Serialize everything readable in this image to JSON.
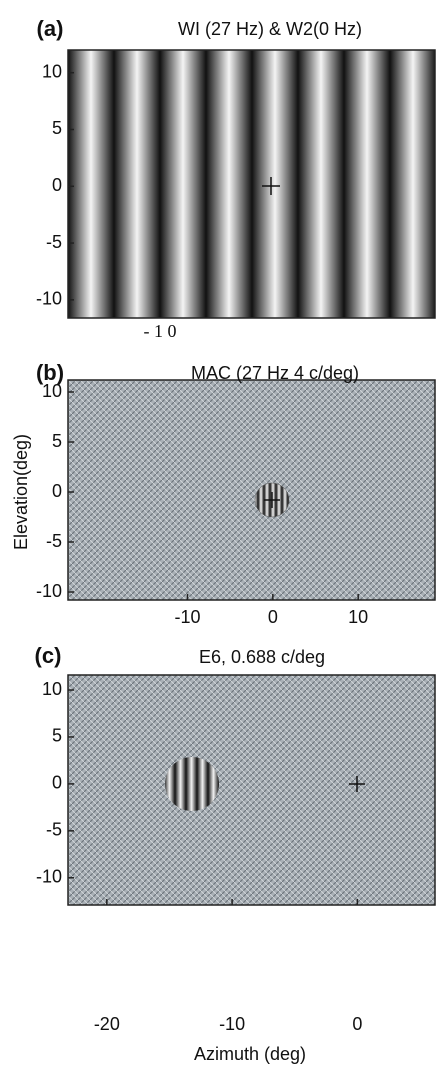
{
  "chart_data": [
    {
      "type": "image",
      "panel": "(a)",
      "title": "WI (27 Hz) & W2(0 Hz)",
      "annotation": "- 1 0",
      "ylim": [
        -11.6,
        12
      ],
      "yticks": [
        10,
        5,
        0,
        -5,
        -10
      ]
    },
    {
      "type": "image",
      "panel": "(b)",
      "title": "MAC (27 Hz 4 c/deg)",
      "ylabel": "Elevation(deg)",
      "ylim": [
        -10.8,
        11.2
      ],
      "yticks": [
        10,
        5,
        0,
        -5,
        -10
      ],
      "xlim": [
        -24,
        19
      ],
      "xticks": [
        -10,
        0,
        10
      ]
    },
    {
      "type": "image",
      "panel": "(c)",
      "title": "E6, 0.688 c/deg",
      "xlabel": "Azimuth  (deg)",
      "ylim": [
        -12.9,
        11.6
      ],
      "yticks": [
        10,
        5,
        0,
        -5,
        -10
      ],
      "xlim": [
        -23.1,
        6.2
      ],
      "xticks": [
        -20,
        -10,
        0
      ]
    }
  ]
}
